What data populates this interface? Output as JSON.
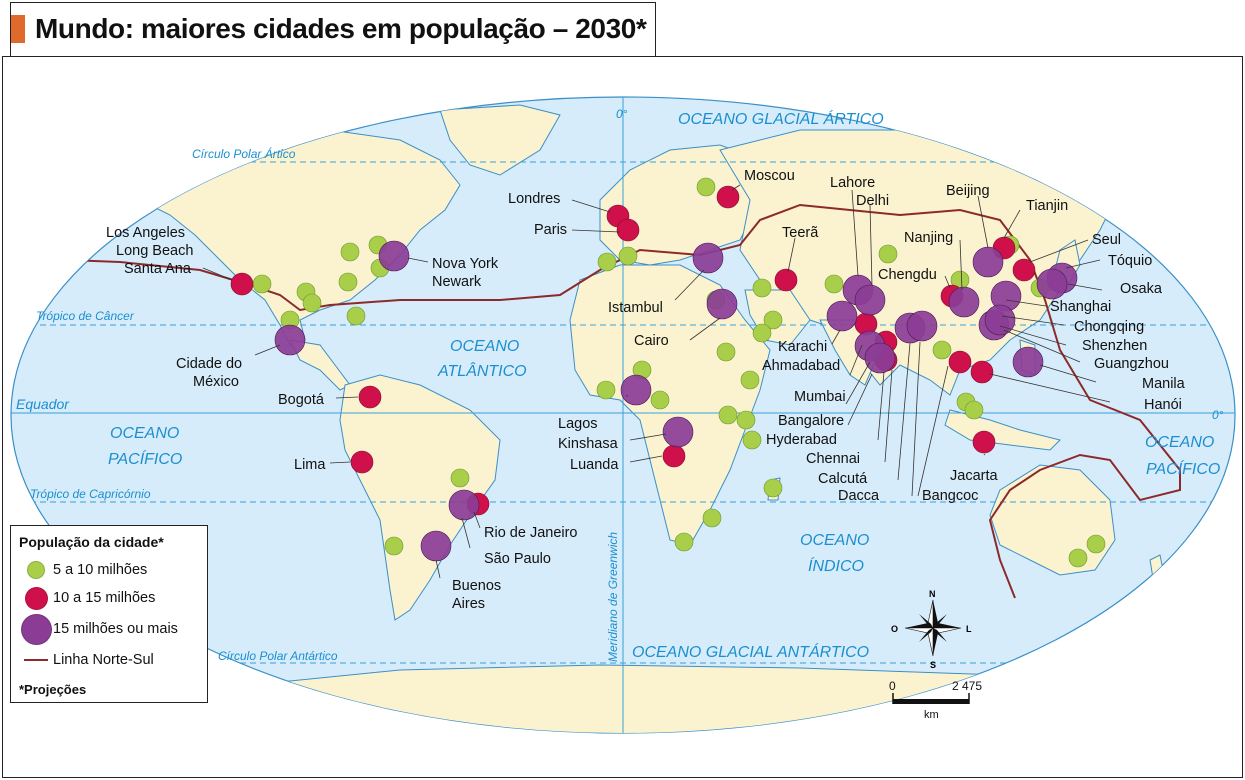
{
  "title": "Mundo: maiores cidades em população – 2030*",
  "colors": {
    "ocean": "#d7ecfa",
    "land": "#fbf3d0",
    "coast": "#3a8fc8",
    "grid": "#3aa0d8",
    "green": "#a9cf4a",
    "red": "#d0104a",
    "purple": "#8b3d96",
    "northSouth": "#8c2a2a"
  },
  "oceans": {
    "glacial_artico": "OCEANO GLACIAL ÁRTICO",
    "atlantico_1": "OCEANO",
    "atlantico_2": "ATLÂNTICO",
    "pacifico_w_1": "OCEANO",
    "pacifico_w_2": "PACÍFICO",
    "pacifico_e_1": "OCEANO",
    "pacifico_e_2": "PACÍFICO",
    "indico_1": "OCEANO",
    "indico_2": "ÍNDICO",
    "glacial_antartico": "OCEANO GLACIAL ANTÁRTICO"
  },
  "lines": {
    "circulo_polar_artico": "Círculo Polar Ártico",
    "tropico_cancer": "Trópico de Câncer",
    "equador": "Equador",
    "tropico_capricornio": "Trópico de Capricórnio",
    "circulo_polar_antartico": "Círculo Polar Antártico",
    "meridiano": "Meridiano de Greenwich",
    "zero_top": "0°",
    "zero_right": "0°"
  },
  "cities": [
    {
      "name": "Los Angeles",
      "cat": "red"
    },
    {
      "name": "Long Beach",
      "cat": "red"
    },
    {
      "name": "Santa Ana",
      "cat": "red"
    },
    {
      "name": "Nova York",
      "cat": "purple"
    },
    {
      "name": "Newark",
      "cat": "purple"
    },
    {
      "name": "Cidade do",
      "cat": "purple"
    },
    {
      "name": "México",
      "cat": "purple"
    },
    {
      "name": "Bogotá",
      "cat": "red"
    },
    {
      "name": "Lima",
      "cat": "red"
    },
    {
      "name": "Rio de Janeiro",
      "cat": "red"
    },
    {
      "name": "São Paulo",
      "cat": "purple"
    },
    {
      "name": "Buenos",
      "cat": "purple"
    },
    {
      "name": "Aires",
      "cat": "purple"
    },
    {
      "name": "Londres",
      "cat": "red"
    },
    {
      "name": "Paris",
      "cat": "red"
    },
    {
      "name": "Moscou",
      "cat": "red"
    },
    {
      "name": "Istambul",
      "cat": "purple"
    },
    {
      "name": "Cairo",
      "cat": "purple"
    },
    {
      "name": "Lagos",
      "cat": "purple"
    },
    {
      "name": "Kinshasa",
      "cat": "purple"
    },
    {
      "name": "Luanda",
      "cat": "red"
    },
    {
      "name": "Teerã",
      "cat": "red"
    },
    {
      "name": "Lahore",
      "cat": "purple"
    },
    {
      "name": "Delhi",
      "cat": "purple"
    },
    {
      "name": "Karachi",
      "cat": "purple"
    },
    {
      "name": "Ahmadabad",
      "cat": "red"
    },
    {
      "name": "Mumbai",
      "cat": "purple"
    },
    {
      "name": "Bangalore",
      "cat": "purple"
    },
    {
      "name": "Hyderabad",
      "cat": "red"
    },
    {
      "name": "Chennai",
      "cat": "red"
    },
    {
      "name": "Calcutá",
      "cat": "purple"
    },
    {
      "name": "Dacca",
      "cat": "purple"
    },
    {
      "name": "Bangcoc",
      "cat": "red"
    },
    {
      "name": "Beijing",
      "cat": "purple"
    },
    {
      "name": "Tianjin",
      "cat": "red"
    },
    {
      "name": "Nanjing",
      "cat": "green"
    },
    {
      "name": "Chengdu",
      "cat": "red"
    },
    {
      "name": "Seul",
      "cat": "red"
    },
    {
      "name": "Tóquio",
      "cat": "purple"
    },
    {
      "name": "Osaka",
      "cat": "purple"
    },
    {
      "name": "Shanghai",
      "cat": "purple"
    },
    {
      "name": "Chongqing",
      "cat": "purple"
    },
    {
      "name": "Shenzhen",
      "cat": "purple"
    },
    {
      "name": "Guangzhou",
      "cat": "purple"
    },
    {
      "name": "Manila",
      "cat": "purple"
    },
    {
      "name": "Hanói",
      "cat": "red"
    },
    {
      "name": "Jacarta",
      "cat": "red"
    }
  ],
  "legend": {
    "title": "População da cidade*",
    "green": "5 a 10 milhões",
    "red": "10 a 15 milhões",
    "purple": "15 milhões ou mais",
    "line": "Linha Norte-Sul",
    "note": "*Projeções"
  },
  "compass": {
    "n": "N",
    "s": "S",
    "l": "L",
    "o": "O"
  },
  "scale": {
    "zero": "0",
    "value": "2 475",
    "unit": "km"
  }
}
